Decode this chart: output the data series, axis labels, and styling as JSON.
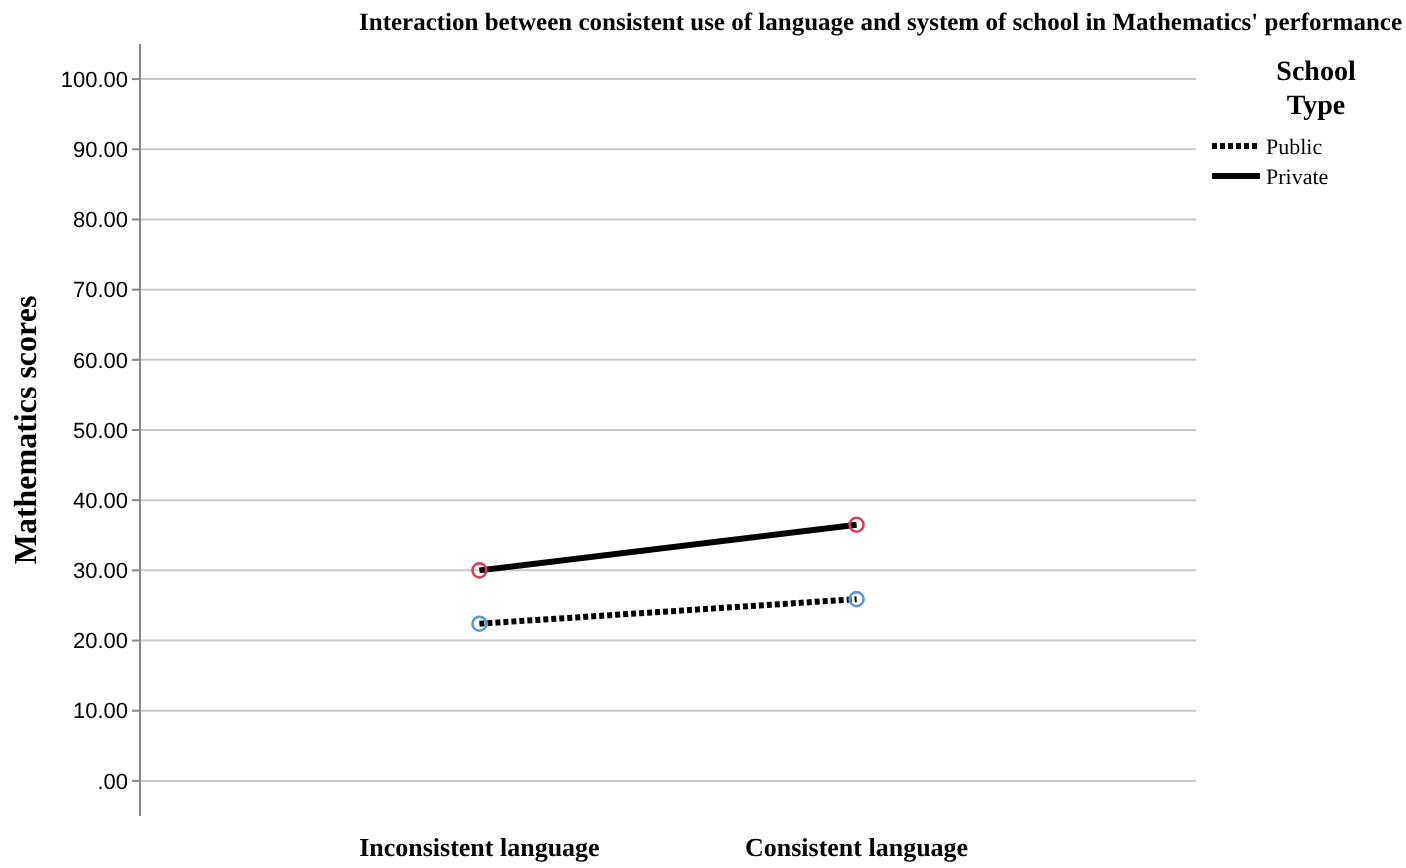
{
  "chart_data": {
    "type": "line",
    "title": "Interaction between consistent use of language and system of school in Mathematics' performance",
    "ylabel": "Mathematics scores",
    "legend_title": "School Type",
    "categories": [
      "Inconsistent language",
      "Consistent language"
    ],
    "series": [
      {
        "name": "Public",
        "color": "#000000",
        "colors": [
          "#5b9bd5",
          "#5b9bd5"
        ],
        "line_style": "dotted",
        "values": [
          22.4,
          25.9
        ]
      },
      {
        "name": "Private",
        "color": "#000000",
        "colors": [
          "#d6405e",
          "#d6405e"
        ],
        "line_style": "solid",
        "values": [
          30.0,
          36.5
        ]
      }
    ],
    "ylim": [
      -5,
      105
    ],
    "yticks": [
      {
        "value": 0,
        "label": ".00"
      },
      {
        "value": 10,
        "label": "10.00"
      },
      {
        "value": 20,
        "label": "20.00"
      },
      {
        "value": 30,
        "label": "30.00"
      },
      {
        "value": 40,
        "label": "40.00"
      },
      {
        "value": 50,
        "label": "50.00"
      },
      {
        "value": 60,
        "label": "60.00"
      },
      {
        "value": 70,
        "label": "70.00"
      },
      {
        "value": 80,
        "label": "80.00"
      },
      {
        "value": 90,
        "label": "90.00"
      },
      {
        "value": 100,
        "label": "100.00"
      }
    ],
    "grid": "y",
    "legend": "top right",
    "marker": "circle"
  }
}
